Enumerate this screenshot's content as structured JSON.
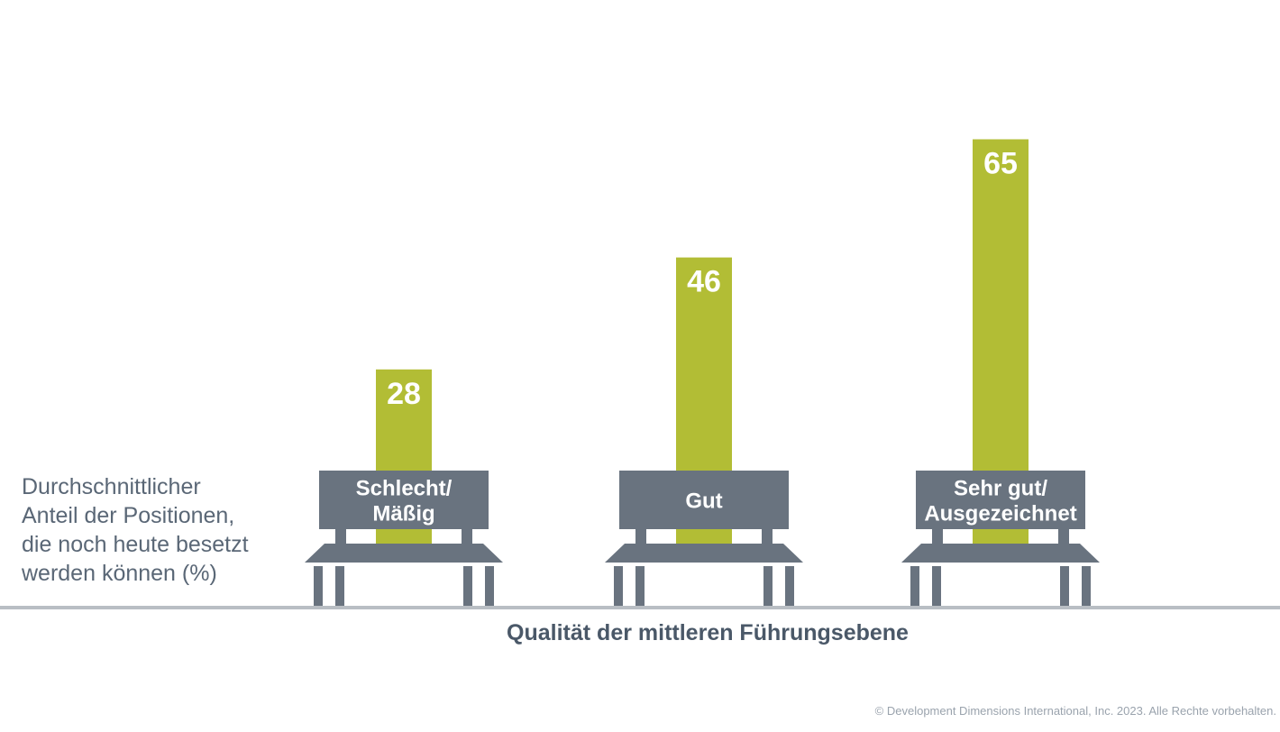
{
  "colors": {
    "bar": "#b2bd35",
    "bench": "#69737f",
    "baseline": "#b9bec4",
    "value_text": "#ffffff",
    "axis_text": "#4a5868"
  },
  "ylabel_lines": [
    "Durchschnittlicher",
    "Anteil der Positionen,",
    "die noch heute besetzt",
    "werden können (%)"
  ],
  "footer": "© Development Dimensions International, Inc. 2023. Alle Rechte vorbehalten.",
  "chart_data": {
    "type": "bar",
    "categories": [
      [
        "Schlecht/",
        "Mäßig"
      ],
      [
        "Gut"
      ],
      [
        "Sehr gut/",
        "Ausgezeichnet"
      ]
    ],
    "values": [
      28,
      46,
      65
    ],
    "xlabel": "Qualität der mittleren Führungsebene",
    "ylabel": "Durchschnittlicher Anteil der Positionen, die noch heute besetzt werden können (%)",
    "grid": false,
    "data_labels": true
  }
}
